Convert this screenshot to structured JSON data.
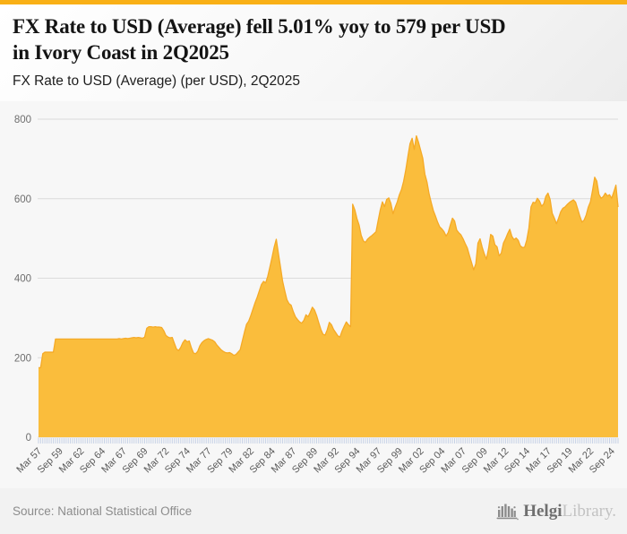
{
  "page": {
    "accent_color": "#F9B016",
    "title_line1": "FX Rate to USD (Average) fell 5.01% yoy to 579 per USD",
    "title_line2": "in Ivory Coast in 2Q2025",
    "subtitle": "FX Rate to USD (Average) (per USD), 2Q2025"
  },
  "footer": {
    "source": "Source: National Statistical Office",
    "logo_icon": "bar-chart-building-icon",
    "logo_text_primary": "Helgi",
    "logo_text_secondary": "Library."
  },
  "chart_data": {
    "type": "area",
    "title": "FX Rate to USD (Average) fell 5.01% yoy to 579 per USD in Ivory Coast in 2Q2025",
    "subtitle": "FX Rate to USD (Average) (per USD), 2Q2025",
    "xlabel": "",
    "ylabel": "",
    "ylim": [
      0,
      800
    ],
    "yticks": [
      0,
      200,
      400,
      600,
      800
    ],
    "grid": "horizontal",
    "legend": "none",
    "frequency": "quarterly",
    "x_start_period": "1Q1957",
    "x_end_period": "2Q2025",
    "x_tick_labels": [
      "Mar 57",
      "Sep 59",
      "Mar 62",
      "Sep 64",
      "Mar 67",
      "Sep 69",
      "Mar 72",
      "Sep 74",
      "Mar 77",
      "Sep 79",
      "Mar 82",
      "Sep 84",
      "Mar 87",
      "Sep 89",
      "Mar 92",
      "Sep 94",
      "Mar 97",
      "Sep 99",
      "Mar 02",
      "Sep 04",
      "Mar 07",
      "Sep 09",
      "Mar 12",
      "Sep 14",
      "Mar 17",
      "Sep 19",
      "Mar 22",
      "Sep 24"
    ],
    "x_tick_interval": 10,
    "series": [
      {
        "name": "FX Rate to USD (Average) (per USD)",
        "last_value": 579,
        "yoy_change_pct": -5.01,
        "values": [
          175,
          175,
          210,
          214,
          214,
          214,
          214,
          214,
          247,
          247,
          247,
          247,
          247,
          247,
          247,
          247,
          247,
          247,
          247,
          247,
          247,
          247,
          247,
          247,
          247,
          247,
          247,
          247,
          247,
          247,
          247,
          247,
          247,
          247,
          247,
          247,
          247,
          247,
          248,
          247,
          248,
          249,
          248,
          249,
          250,
          251,
          250,
          251,
          250,
          249,
          252,
          274,
          278,
          278,
          277,
          278,
          277,
          277,
          276,
          268,
          256,
          252,
          250,
          251,
          236,
          222,
          218,
          226,
          238,
          245,
          240,
          242,
          225,
          212,
          210,
          216,
          230,
          238,
          243,
          246,
          248,
          246,
          244,
          240,
          232,
          226,
          220,
          216,
          213,
          212,
          213,
          210,
          206,
          208,
          214,
          220,
          242,
          264,
          284,
          292,
          306,
          322,
          338,
          352,
          368,
          384,
          392,
          388,
          405,
          428,
          452,
          478,
          498,
          462,
          428,
          392,
          368,
          346,
          336,
          332,
          316,
          303,
          296,
          290,
          287,
          294,
          308,
          303,
          314,
          327,
          320,
          306,
          288,
          271,
          259,
          257,
          270,
          289,
          283,
          271,
          263,
          255,
          252,
          267,
          279,
          290,
          283,
          278,
          586,
          572,
          550,
          534,
          508,
          494,
          490,
          498,
          503,
          507,
          512,
          517,
          545,
          572,
          592,
          580,
          598,
          602,
          588,
          562,
          578,
          592,
          610,
          623,
          644,
          672,
          706,
          738,
          752,
          724,
          758,
          742,
          722,
          702,
          662,
          642,
          612,
          590,
          570,
          556,
          541,
          529,
          524,
          517,
          506,
          515,
          534,
          551,
          544,
          521,
          514,
          509,
          499,
          487,
          476,
          457,
          439,
          421,
          436,
          488,
          499,
          478,
          461,
          448,
          474,
          510,
          506,
          484,
          479,
          456,
          463,
          488,
          499,
          512,
          523,
          505,
          497,
          501,
          495,
          481,
          477,
          478,
          496,
          526,
          579,
          591,
          589,
          601,
          594,
          581,
          587,
          606,
          614,
          598,
          563,
          551,
          537,
          551,
          567,
          576,
          579,
          585,
          590,
          594,
          597,
          591,
          574,
          556,
          541,
          546,
          559,
          579,
          592,
          621,
          654,
          644,
          611,
          601,
          605,
          614,
          607,
          610,
          601,
          617,
          634,
          579
        ]
      }
    ],
    "colors": {
      "area_fill": "#FABD3C",
      "area_line": "#F5AA27",
      "gridline": "#dbdbdb",
      "minor_tick": "#c7d2e6",
      "y_label": "#6e6e6e",
      "x_label": "#5a5a5a"
    }
  }
}
